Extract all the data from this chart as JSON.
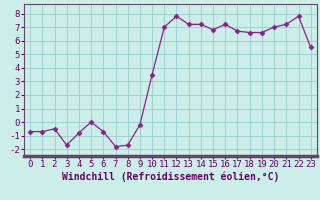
{
  "x": [
    0,
    1,
    2,
    3,
    4,
    5,
    6,
    7,
    8,
    9,
    10,
    11,
    12,
    13,
    14,
    15,
    16,
    17,
    18,
    19,
    20,
    21,
    22,
    23
  ],
  "y": [
    -0.7,
    -0.7,
    -0.5,
    -1.7,
    -0.8,
    0.0,
    -0.7,
    -1.8,
    -1.7,
    -0.2,
    3.5,
    7.0,
    7.8,
    7.2,
    7.2,
    6.8,
    7.2,
    6.7,
    6.6,
    6.6,
    7.0,
    7.2,
    7.8,
    5.5
  ],
  "line_color": "#882288",
  "marker": "D",
  "marker_size": 2.5,
  "bg_color": "#cceee8",
  "grid_color": "#99cccc",
  "xlabel": "Windchill (Refroidissement éolien,°C)",
  "ylim": [
    -2.5,
    8.7
  ],
  "xlim": [
    -0.5,
    23.5
  ],
  "yticks": [
    -2,
    -1,
    0,
    1,
    2,
    3,
    4,
    5,
    6,
    7,
    8
  ],
  "xticks": [
    0,
    1,
    2,
    3,
    4,
    5,
    6,
    7,
    8,
    9,
    10,
    11,
    12,
    13,
    14,
    15,
    16,
    17,
    18,
    19,
    20,
    21,
    22,
    23
  ],
  "xlabel_fontsize": 7.0,
  "tick_fontsize": 6.5,
  "bottom_bar_color": "#664466",
  "label_color": "#660066"
}
